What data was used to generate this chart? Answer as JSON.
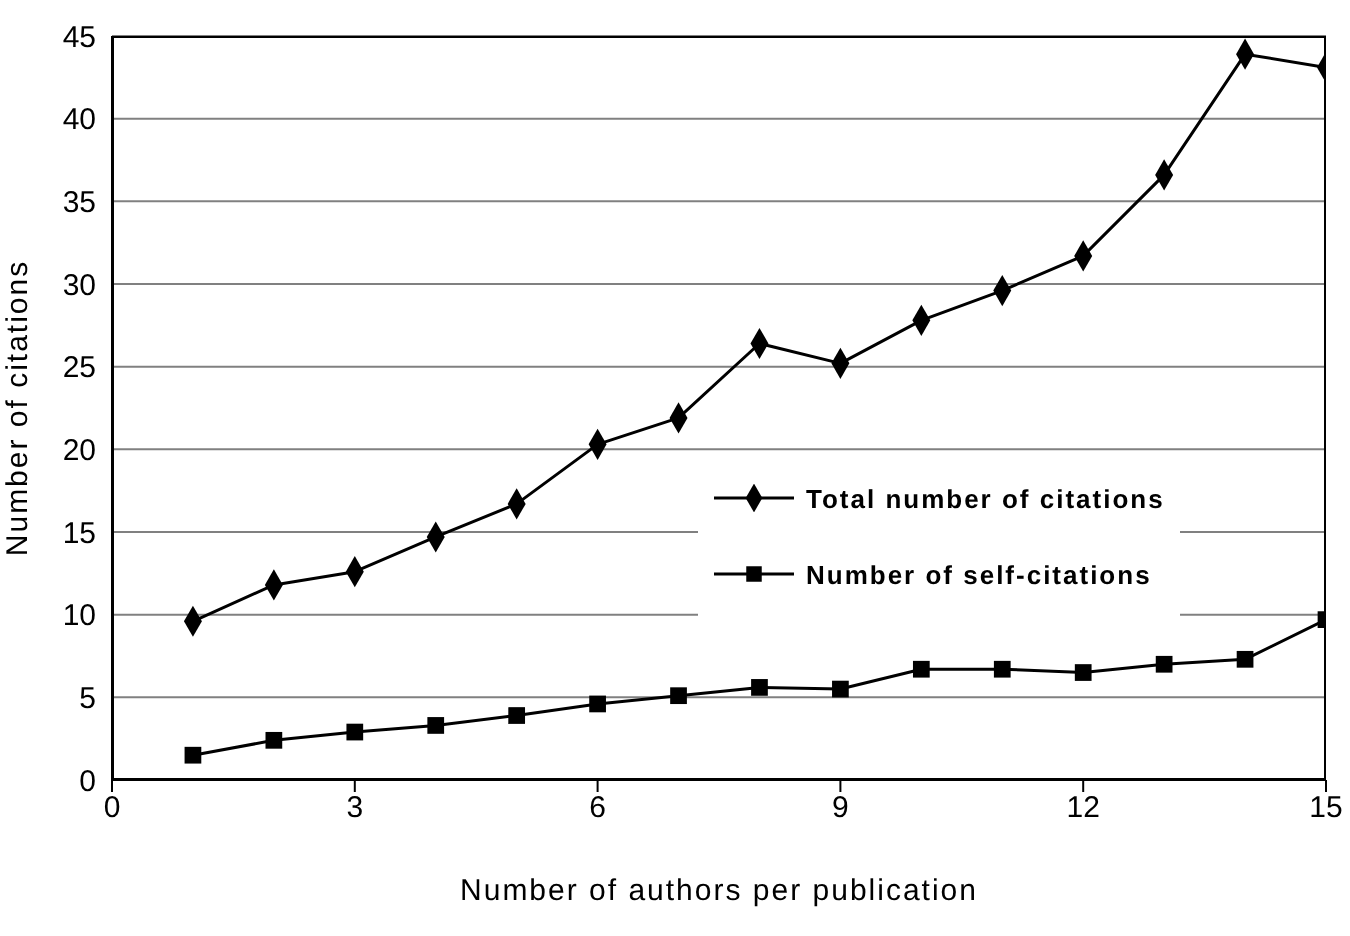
{
  "chart_data": {
    "type": "line",
    "xlabel": "Number of authors per publication",
    "ylabel": "Number of citations",
    "x": [
      1,
      2,
      3,
      4,
      5,
      6,
      7,
      8,
      9,
      10,
      11,
      12,
      13,
      14,
      15
    ],
    "series": [
      {
        "name": "Total number of citations",
        "color": "#000000",
        "marker": "diamond",
        "values": [
          9.6,
          11.8,
          12.6,
          14.7,
          16.7,
          20.3,
          21.9,
          26.4,
          25.2,
          27.8,
          29.6,
          31.7,
          36.6,
          43.9,
          43.1
        ]
      },
      {
        "name": "Number of self-citations",
        "color": "#000000",
        "marker": "square",
        "values": [
          1.5,
          2.4,
          2.9,
          3.3,
          3.9,
          4.6,
          5.1,
          5.6,
          5.5,
          6.7,
          6.7,
          6.5,
          7.0,
          7.3,
          9.7
        ]
      }
    ],
    "xlim": [
      0,
      15
    ],
    "xticks": [
      0,
      3,
      6,
      9,
      12,
      15
    ],
    "ylim": [
      0,
      45
    ],
    "yticks": [
      0,
      5,
      10,
      15,
      20,
      25,
      30,
      35,
      40,
      45
    ],
    "grid": "y",
    "legend": "right",
    "line_style": "solid"
  }
}
